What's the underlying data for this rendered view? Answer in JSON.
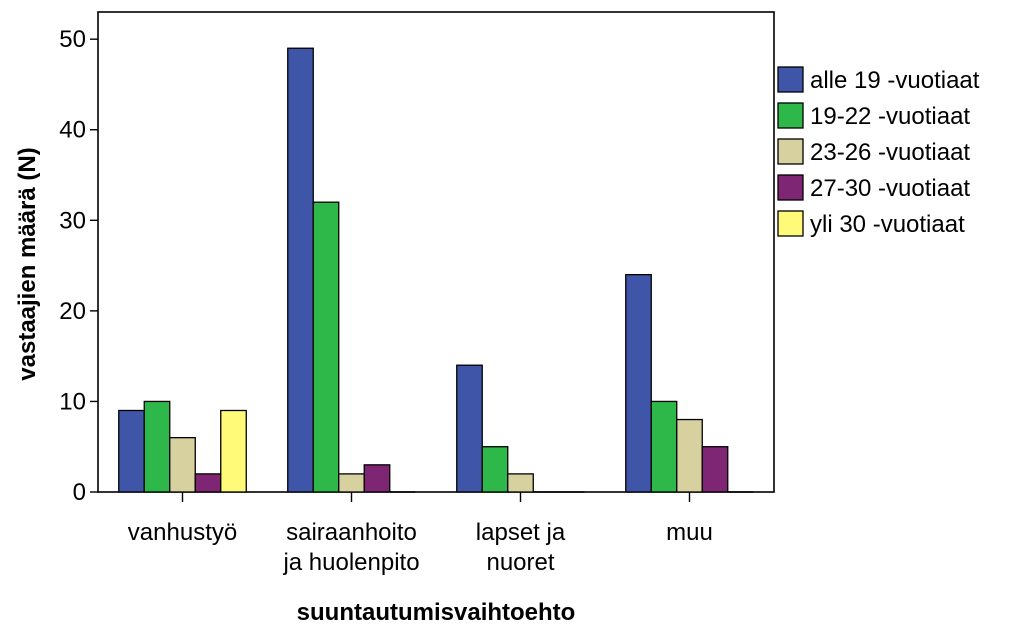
{
  "chart_data": {
    "type": "bar",
    "xlabel": "suuntautumisvaihtoehto",
    "ylabel": "vastaajien määrä (N)",
    "ylim": [
      0,
      53
    ],
    "yticks": [
      0,
      10,
      20,
      30,
      40,
      50
    ],
    "ytick_labels": [
      "0",
      "10",
      "20",
      "30",
      "40",
      "50"
    ],
    "categories": [
      [
        "vanhustyö"
      ],
      [
        "sairaanhoito",
        "ja huolenpito"
      ],
      [
        "lapset ja",
        "nuoret"
      ],
      [
        "muu"
      ]
    ],
    "series": [
      {
        "name": "alle 19 -vuotiaat",
        "color": "#3F56A8",
        "values": [
          9,
          49,
          14,
          24
        ]
      },
      {
        "name": "19-22 -vuotiaat",
        "color": "#2EB84A",
        "values": [
          10,
          32,
          5,
          10
        ]
      },
      {
        "name": "23-26 -vuotiaat",
        "color": "#D6D19F",
        "values": [
          6,
          2,
          2,
          8
        ]
      },
      {
        "name": "27-30 -vuotiaat",
        "color": "#7E2574",
        "values": [
          2,
          3,
          0,
          5
        ]
      },
      {
        "name": "yli 30 -vuotiaat",
        "color": "#FFFB78",
        "values": [
          9,
          0,
          0,
          0
        ]
      }
    ],
    "legend_position": "right",
    "grid": false
  }
}
